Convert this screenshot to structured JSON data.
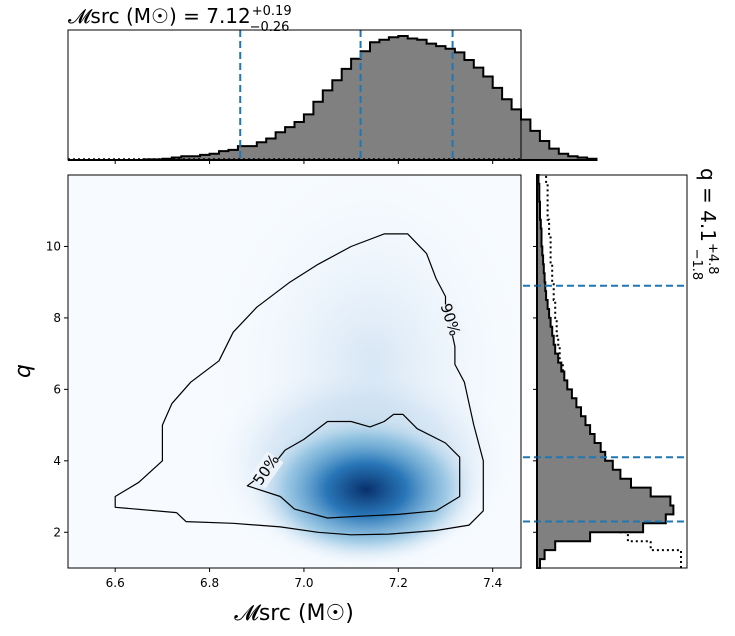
{
  "chart_data": [
    {
      "type": "heatmap",
      "panel": "joint-posterior",
      "xlabel": "𝓜src (M☉)",
      "ylabel": "q",
      "xlim": [
        6.5,
        7.46
      ],
      "ylim": [
        1.0,
        12.0
      ],
      "xticks": [
        6.6,
        6.8,
        7.0,
        7.2,
        7.4
      ],
      "xtick_labels": [
        "6.6",
        "6.8",
        "7.0",
        "7.2",
        "7.4"
      ],
      "yticks": [
        2,
        4,
        6,
        8,
        10
      ],
      "ytick_labels": [
        "2",
        "4",
        "6",
        "8",
        "10"
      ],
      "density_peak": {
        "x": 7.1,
        "y": 3.2
      },
      "colormap": "Blues",
      "contours": [
        {
          "label": "90%",
          "points": [
            [
              6.73,
              2.55
            ],
            [
              6.75,
              2.3
            ],
            [
              6.85,
              2.25
            ],
            [
              6.95,
              2.15
            ],
            [
              7.03,
              2.0
            ],
            [
              7.1,
              1.93
            ],
            [
              7.18,
              1.95
            ],
            [
              7.28,
              2.05
            ],
            [
              7.35,
              2.2
            ],
            [
              7.38,
              2.6
            ],
            [
              7.38,
              3.2
            ],
            [
              7.38,
              4.0
            ],
            [
              7.36,
              5.0
            ],
            [
              7.35,
              5.6
            ],
            [
              7.34,
              6.2
            ],
            [
              7.32,
              6.7
            ],
            [
              7.32,
              7.2
            ],
            [
              7.31,
              7.8
            ],
            [
              7.3,
              8.3
            ],
            [
              7.3,
              8.6
            ],
            [
              7.28,
              9.1
            ],
            [
              7.26,
              9.8
            ],
            [
              7.22,
              10.35
            ],
            [
              7.17,
              10.35
            ],
            [
              7.1,
              10.0
            ],
            [
              7.03,
              9.5
            ],
            [
              6.97,
              9.0
            ],
            [
              6.9,
              8.3
            ],
            [
              6.85,
              7.6
            ],
            [
              6.82,
              6.8
            ],
            [
              6.76,
              6.2
            ],
            [
              6.72,
              5.6
            ],
            [
              6.7,
              5.0
            ],
            [
              6.7,
              4.4
            ],
            [
              6.7,
              4.0
            ],
            [
              6.65,
              3.4
            ],
            [
              6.6,
              3.0
            ],
            [
              6.6,
              2.7
            ],
            [
              6.73,
              2.55
            ]
          ],
          "label_at": [
            7.31,
            7.95
          ],
          "label_angle": 72
        },
        {
          "label": "50%",
          "points": [
            [
              6.95,
              3.0
            ],
            [
              6.98,
              2.65
            ],
            [
              7.05,
              2.4
            ],
            [
              7.12,
              2.45
            ],
            [
              7.2,
              2.5
            ],
            [
              7.28,
              2.6
            ],
            [
              7.33,
              3.0
            ],
            [
              7.33,
              3.5
            ],
            [
              7.33,
              4.1
            ],
            [
              7.3,
              4.5
            ],
            [
              7.24,
              4.9
            ],
            [
              7.21,
              5.3
            ],
            [
              7.19,
              5.3
            ],
            [
              7.17,
              5.1
            ],
            [
              7.14,
              4.95
            ],
            [
              7.1,
              5.1
            ],
            [
              7.05,
              5.1
            ],
            [
              7.0,
              4.6
            ],
            [
              6.96,
              4.3
            ],
            [
              6.93,
              3.8
            ],
            [
              6.88,
              3.3
            ],
            [
              6.95,
              3.0
            ]
          ],
          "label_at": [
            6.92,
            3.75
          ],
          "label_angle": -55
        }
      ]
    },
    {
      "type": "histogram",
      "panel": "marginal-chirp-mass",
      "title": "𝓜src (M☉) = 7.12+0.19−0.26",
      "title_parts": {
        "lhs": "𝓜src (M☉) = 7.12",
        "sup": "+0.19",
        "sub": "−0.26"
      },
      "xlim": [
        6.5,
        7.46
      ],
      "bin_width": 0.02,
      "bin_start": 6.5,
      "counts": [
        0,
        0,
        0,
        0,
        0,
        0,
        0,
        0,
        0.005,
        0.005,
        0.01,
        0.02,
        0.03,
        0.03,
        0.04,
        0.05,
        0.07,
        0.08,
        0.11,
        0.11,
        0.14,
        0.17,
        0.22,
        0.26,
        0.3,
        0.36,
        0.46,
        0.55,
        0.63,
        0.72,
        0.8,
        0.86,
        0.93,
        0.95,
        0.97,
        0.98,
        0.96,
        0.95,
        0.92,
        0.9,
        0.88,
        0.85,
        0.79,
        0.73,
        0.66,
        0.57,
        0.48,
        0.4,
        0.32,
        0.23,
        0.15,
        0.09,
        0.05,
        0.03,
        0.02,
        0.01
      ],
      "prior_shown": true,
      "median": 7.12,
      "quantile_lines": [
        6.865,
        7.12,
        7.315
      ],
      "fill_color": "#808080",
      "line_color": "#1f77b4"
    },
    {
      "type": "histogram",
      "panel": "marginal-mass-ratio",
      "orientation": "horizontal",
      "title": "q = 4.1+4.8−1.8",
      "title_parts": {
        "lhs": "q = 4.1",
        "sup": "+4.8",
        "sub": "−1.8"
      },
      "ylim": [
        1.0,
        12.0
      ],
      "bin_width": 0.25,
      "bin_start": 1.0,
      "counts": [
        0.02,
        0.05,
        0.12,
        0.35,
        0.7,
        0.85,
        0.9,
        0.88,
        0.75,
        0.62,
        0.55,
        0.5,
        0.45,
        0.42,
        0.38,
        0.35,
        0.32,
        0.29,
        0.26,
        0.23,
        0.2,
        0.18,
        0.16,
        0.14,
        0.12,
        0.11,
        0.1,
        0.09,
        0.08,
        0.07,
        0.06,
        0.055,
        0.05,
        0.045,
        0.04,
        0.035,
        0.03,
        0.03,
        0.025,
        0.02,
        0.02,
        0.015,
        0.015,
        0.01
      ],
      "prior_counts": [
        0.95,
        0.95,
        0.75,
        0.6,
        0.55,
        0.55,
        0.5,
        0.43,
        0.42,
        0.42,
        0.4,
        0.37,
        0.3,
        0.28,
        0.26,
        0.24,
        0.23,
        0.22,
        0.2,
        0.2,
        0.18,
        0.17,
        0.17,
        0.15,
        0.15,
        0.14,
        0.13,
        0.13,
        0.12,
        0.12,
        0.11,
        0.11,
        0.1,
        0.1,
        0.09,
        0.09,
        0.09,
        0.08,
        0.08,
        0.07,
        0.07,
        0.07,
        0.07,
        0.06
      ],
      "quantile_lines": [
        2.3,
        4.1,
        8.9
      ],
      "fill_color": "#808080",
      "line_color": "#1f77b4"
    }
  ]
}
